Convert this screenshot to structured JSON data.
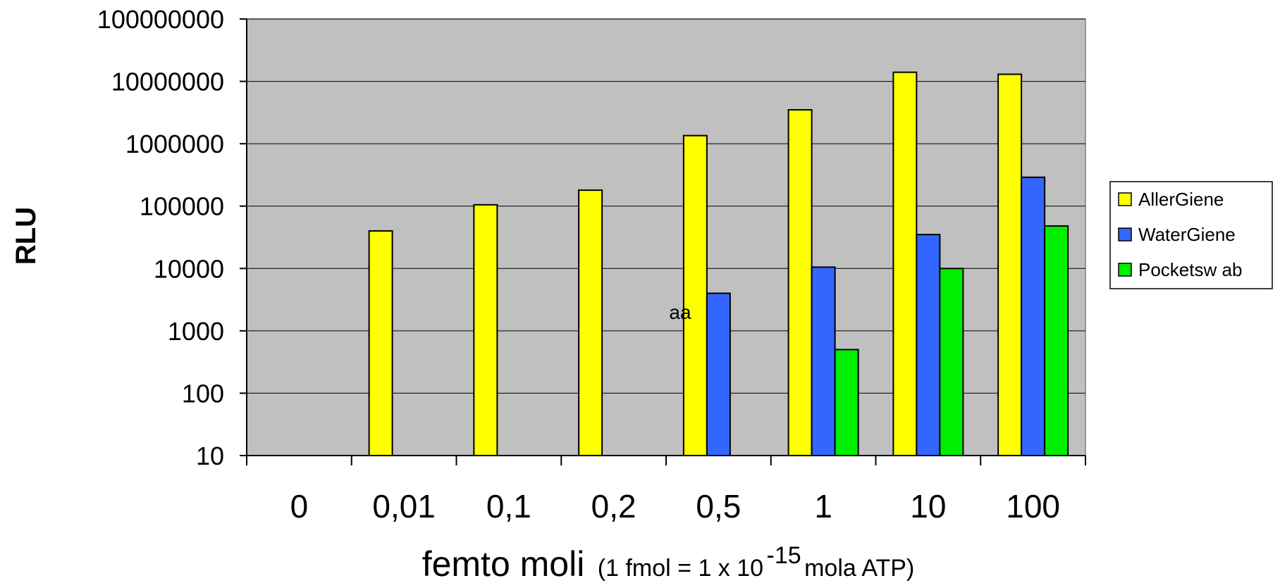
{
  "chart_data": {
    "type": "bar",
    "y_scale": "log",
    "ylim": [
      10,
      100000000
    ],
    "grid": true,
    "legend_position": "right",
    "ylabel": "RLU",
    "xlabel": "femto moli",
    "xlabel_note_prefix": "(1 fmol = 1 x 10",
    "xlabel_note_exponent": "-15",
    "xlabel_note_suffix": " mola ATP)",
    "categories": [
      "0",
      "0,01",
      "0,1",
      "0,2",
      "0,5",
      "1",
      "10",
      "100"
    ],
    "y_ticks": [
      "10",
      "100",
      "1000",
      "10000",
      "100000",
      "1000000",
      "10000000",
      "100000000"
    ],
    "series": [
      {
        "name": "AllerGiene",
        "color": "#ffff00",
        "values": [
          null,
          40000,
          105000,
          180000,
          1350000,
          3500000,
          14000000,
          13000000
        ]
      },
      {
        "name": "WaterGiene",
        "color": "#3366ff",
        "values": [
          null,
          null,
          null,
          null,
          4000,
          10500,
          35000,
          290000
        ]
      },
      {
        "name": "Pocketsw ab",
        "color": "#00ee00",
        "values": [
          null,
          null,
          null,
          null,
          null,
          500,
          10000,
          48000
        ]
      }
    ],
    "annotations": [
      {
        "text": "aa",
        "category": "0,2",
        "y": 2000
      }
    ]
  }
}
